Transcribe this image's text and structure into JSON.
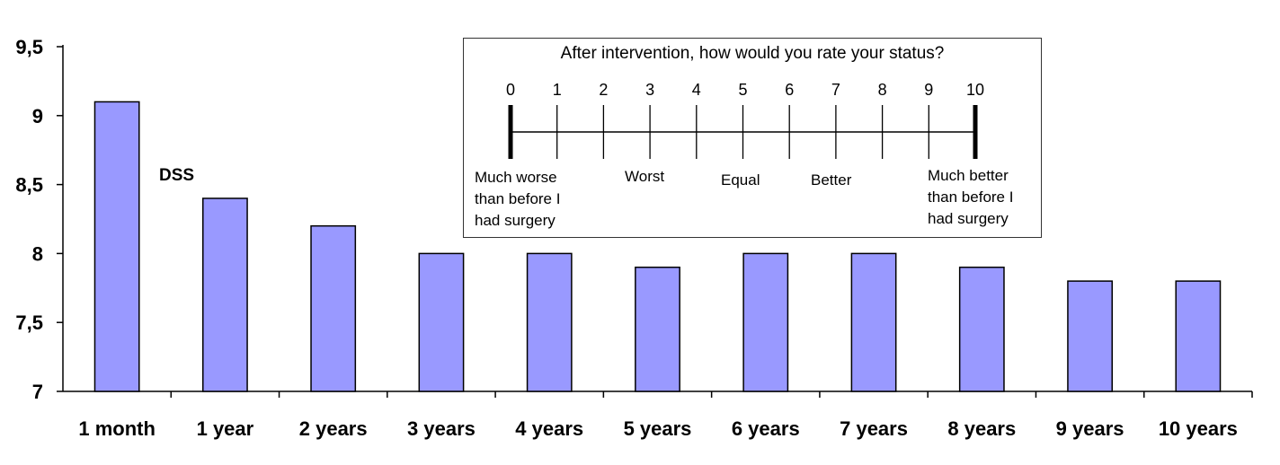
{
  "chart_data": {
    "type": "bar",
    "series_label": "DSS",
    "categories": [
      "1 month",
      "1 year",
      "2 years",
      "3 years",
      "4 years",
      "5 years",
      "6 years",
      "7 years",
      "8 years",
      "9 years",
      "10 years"
    ],
    "values": [
      9.1,
      8.4,
      8.2,
      8.0,
      8.0,
      7.9,
      8.0,
      8.0,
      7.9,
      7.8,
      7.8
    ],
    "ylim": [
      7,
      9.5
    ],
    "yticks": [
      "7",
      "7,5",
      "8",
      "8,5",
      "9",
      "9,5"
    ],
    "bar_color": "#9999ff",
    "grid": false
  },
  "inset": {
    "title": "After intervention, how would you rate your status?",
    "scale_numbers": [
      "0",
      "1",
      "2",
      "3",
      "4",
      "5",
      "6",
      "7",
      "8",
      "9",
      "10"
    ],
    "anchors": {
      "much_worse": [
        "Much worse",
        "than before I",
        "had surgery"
      ],
      "worst": "Worst",
      "equal": "Equal",
      "better": "Better",
      "much_better": [
        "Much better",
        "than before I",
        "had surgery"
      ]
    }
  }
}
